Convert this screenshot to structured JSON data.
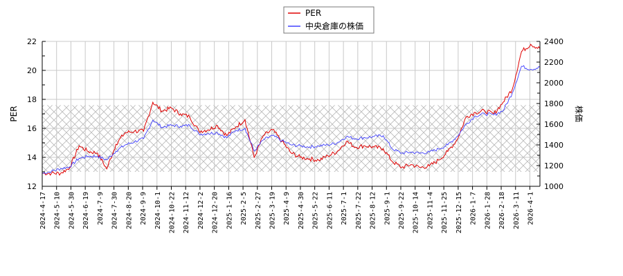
{
  "chart_data": {
    "type": "line",
    "title": "",
    "legend": {
      "position": "top-center",
      "entries": [
        {
          "label": "PER",
          "color": "#e00000"
        },
        {
          "label": "中央倉庫の株価",
          "color": "#4040ff"
        }
      ]
    },
    "xlabel": "",
    "ylabel_left": "PER",
    "ylabel_right": "株価",
    "ylim_left": [
      12,
      22
    ],
    "ylim_right": [
      1000,
      2400
    ],
    "yticks_left": [
      12,
      14,
      16,
      18,
      20,
      22
    ],
    "yticks_right": [
      1000,
      1200,
      1400,
      1600,
      1800,
      2000,
      2200,
      2400
    ],
    "grid": true,
    "shaded_band": {
      "axis": "left",
      "from": 13.0,
      "to": 17.6,
      "pattern": "crosshatch"
    },
    "x_tick_labels": [
      "2024-4-17",
      "2024-5-10",
      "2024-5-30",
      "2024-6-19",
      "2024-7-9",
      "2024-7-30",
      "2024-8-20",
      "2024-9-9",
      "2024-10-1",
      "2024-10-22",
      "2024-11-12",
      "2024-12-2",
      "2024-12-20",
      "2025-1-16",
      "2025-2-5",
      "2025-2-27",
      "2025-3-19",
      "2025-4-9",
      "2025-4-30",
      "2025-5-22",
      "2025-6-11",
      "2025-7-1",
      "2025-7-22",
      "2025-8-12",
      "2025-9-1",
      "2025-9-22",
      "2025-10-14",
      "2025-11-4",
      "2025-11-25",
      "2025-12-15",
      "2026-1-7",
      "2026-1-28",
      "2026-2-18",
      "2026-3-11",
      "2026-4-1"
    ],
    "series": [
      {
        "name": "PER",
        "axis": "left",
        "color": "#e00000",
        "values": [
          12.9,
          12.9,
          12.9,
          13.3,
          14.8,
          14.4,
          14.3,
          13.2,
          14.9,
          15.7,
          15.8,
          15.8,
          17.8,
          17.2,
          17.4,
          17.0,
          16.8,
          15.8,
          15.9,
          16.2,
          15.5,
          16.1,
          16.6,
          14.0,
          15.5,
          15.9,
          15.1,
          14.3,
          14.0,
          13.9,
          13.8,
          14.1,
          14.4,
          15.1,
          14.7,
          14.8,
          14.7,
          14.6,
          13.7,
          13.3,
          13.5,
          13.3,
          13.4,
          13.8,
          14.4,
          15.2,
          16.8,
          17.1,
          17.2,
          17.0,
          17.8,
          18.7,
          21.3,
          21.8,
          21.5
        ]
      },
      {
        "name": "中央倉庫の株価",
        "axis": "right",
        "color": "#4040ff",
        "values": [
          1125,
          1145,
          1170,
          1190,
          1270,
          1290,
          1290,
          1255,
          1340,
          1400,
          1430,
          1460,
          1640,
          1570,
          1590,
          1580,
          1590,
          1505,
          1510,
          1520,
          1470,
          1540,
          1560,
          1340,
          1450,
          1490,
          1440,
          1400,
          1390,
          1380,
          1390,
          1400,
          1420,
          1480,
          1460,
          1470,
          1480,
          1490,
          1360,
          1320,
          1330,
          1320,
          1330,
          1360,
          1400,
          1480,
          1600,
          1680,
          1700,
          1690,
          1730,
          1900,
          2160,
          2130,
          2150
        ]
      },
      {
        "name": "_x_index_dates",
        "axis": "none",
        "color": "",
        "values": []
      }
    ]
  },
  "legend": {
    "per_label": "PER",
    "price_label": "中央倉庫の株価"
  },
  "axes": {
    "left_title": "PER",
    "right_title": "株価"
  }
}
